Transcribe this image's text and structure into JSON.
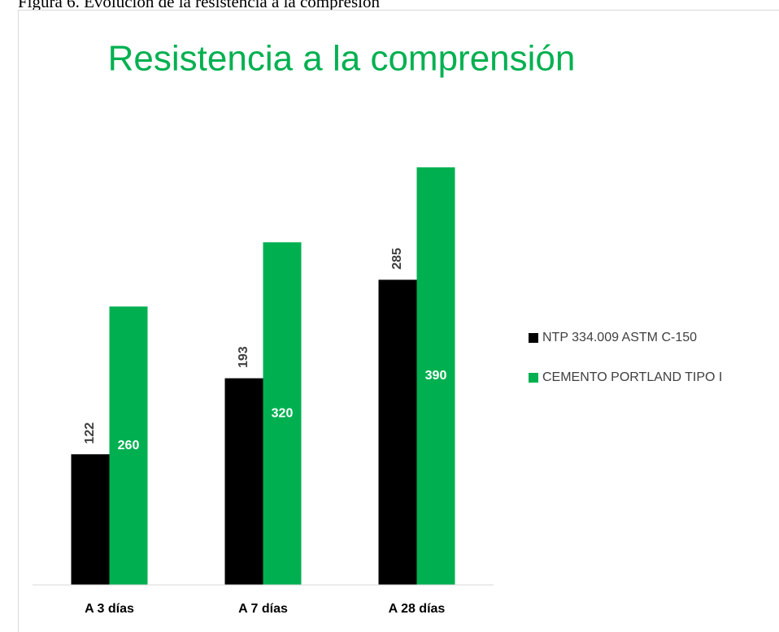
{
  "caption": "Figura 6. Evolución de la resistencia a la compresión",
  "chart_data": {
    "type": "bar",
    "title": "Resistencia a la comprensión",
    "categories": [
      "A 3 días",
      "A 7 días",
      "A 28 días"
    ],
    "series": [
      {
        "name": "NTP 334.009 ASTM C-150",
        "color": "#000000",
        "values": [
          122,
          193,
          285
        ]
      },
      {
        "name": "CEMENTO PORTLAND TIPO I",
        "color": "#00b050",
        "values": [
          260,
          320,
          390
        ]
      }
    ],
    "ylim": [
      0,
      390
    ],
    "legend": "right"
  }
}
